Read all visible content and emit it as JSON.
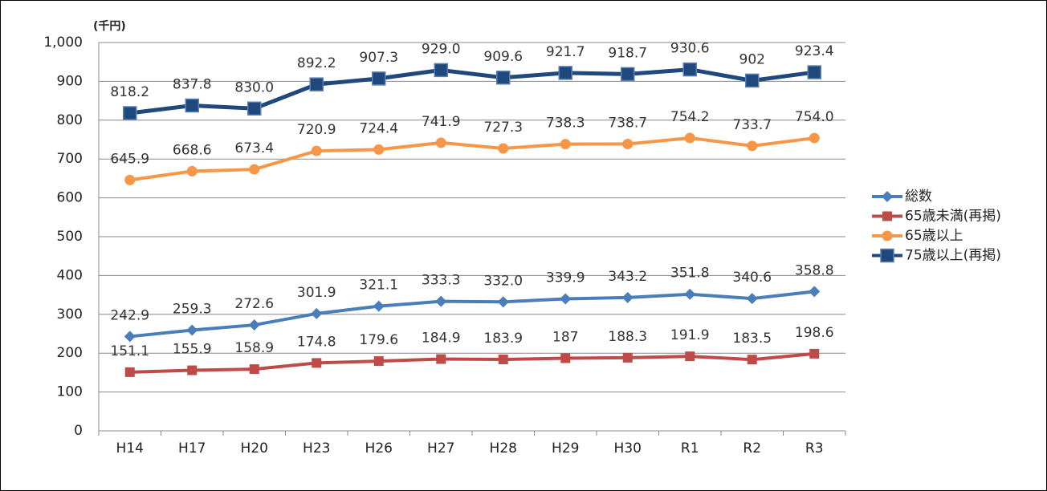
{
  "chart_data": {
    "type": "line",
    "y_axis_label": "(千円)",
    "categories": [
      "H14",
      "H17",
      "H20",
      "H23",
      "H26",
      "H27",
      "H28",
      "H29",
      "H30",
      "R1",
      "R2",
      "R3"
    ],
    "series": [
      {
        "name": "総数",
        "color": "#4a7ebb",
        "marker": "diamond",
        "values": [
          242.9,
          259.3,
          272.6,
          301.9,
          321.1,
          333.3,
          332.0,
          339.9,
          343.2,
          351.8,
          340.6,
          358.8
        ],
        "value_labels": [
          "242.9",
          "259.3",
          "272.6",
          "301.9",
          "321.1",
          "333.3",
          "332.0",
          "339.9",
          "343.2",
          "351.8",
          "340.6",
          "358.8"
        ]
      },
      {
        "name": "65歳未満(再掲)",
        "color": "#be4b48",
        "marker": "square",
        "values": [
          151.1,
          155.9,
          158.9,
          174.8,
          179.6,
          184.9,
          183.9,
          187,
          188.3,
          191.9,
          183.5,
          198.6
        ],
        "value_labels": [
          "151.1",
          "155.9",
          "158.9",
          "174.8",
          "179.6",
          "184.9",
          "183.9",
          "187",
          "188.3",
          "191.9",
          "183.5",
          "198.6"
        ]
      },
      {
        "name": "65歳以上",
        "color": "#f79646",
        "marker": "circle",
        "values": [
          645.9,
          668.6,
          673.4,
          720.9,
          724.4,
          741.9,
          727.3,
          738.3,
          738.7,
          754.2,
          733.7,
          754.0
        ],
        "value_labels": [
          "645.9",
          "668.6",
          "673.4",
          "720.9",
          "724.4",
          "741.9",
          "727.3",
          "738.3",
          "738.7",
          "754.2",
          "733.7",
          "754.0"
        ]
      },
      {
        "name": "75歳以上(再掲)",
        "color": "#1f497d",
        "marker": "bigsquare",
        "values": [
          818.2,
          837.8,
          830.0,
          892.2,
          907.3,
          929.0,
          909.6,
          921.7,
          918.7,
          930.6,
          902,
          923.4
        ],
        "value_labels": [
          "818.2",
          "837.8",
          "830.0",
          "892.2",
          "907.3",
          "929.0",
          "909.6",
          "921.7",
          "918.7",
          "930.6",
          "902",
          "923.4"
        ]
      }
    ],
    "ylim": [
      0,
      1000
    ],
    "yticks": [
      0,
      100,
      200,
      300,
      400,
      500,
      600,
      700,
      800,
      900,
      {
        "value": 1000,
        "label": "1,000"
      }
    ],
    "grid": true,
    "legend": "right"
  }
}
